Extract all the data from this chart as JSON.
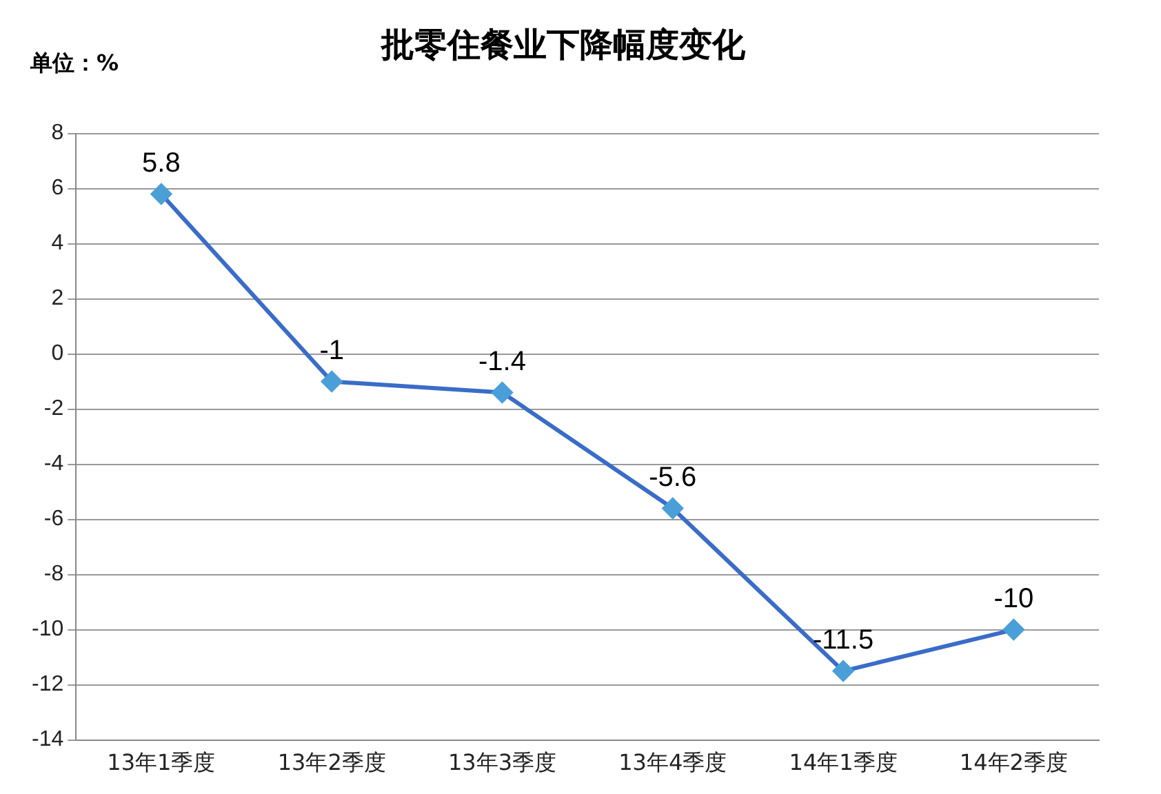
{
  "chart_data": {
    "type": "line",
    "title": "批零住餐业下降幅度变化",
    "ylabel": "单位：%",
    "categories": [
      "13年1季度",
      "13年2季度",
      "13年3季度",
      "13年4季度",
      "14年1季度",
      "14年2季度"
    ],
    "series": [
      {
        "color": "#3a6cc8",
        "values": [
          5.8,
          -1,
          -1.4,
          -5.6,
          -11.5,
          -10
        ]
      }
    ],
    "ylim": [
      -14,
      8
    ],
    "yticks": [
      -14,
      -12,
      -10,
      -8,
      -6,
      -4,
      -2,
      0,
      2,
      4,
      6,
      8
    ],
    "grid": "y",
    "legend": false,
    "marker": "diamond",
    "line_style": "solid",
    "data_labels": true
  }
}
